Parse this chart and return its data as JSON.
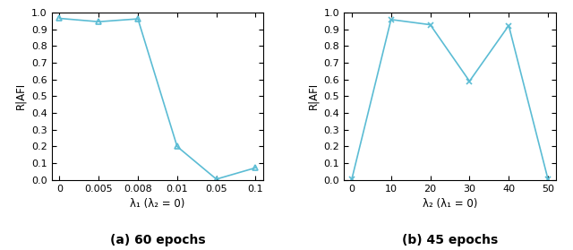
{
  "plot1": {
    "x_positions": [
      0,
      1,
      2,
      3,
      4,
      5
    ],
    "y": [
      0.965,
      0.945,
      0.962,
      0.2,
      0.005,
      0.073
    ],
    "xlabel": "λ₁ (λ₂ = 0)",
    "ylabel": "R|AFI",
    "title": "(a) 60 epochs",
    "xtick_labels": [
      "0",
      "0.005",
      "0.008",
      "0.01",
      "0.05",
      "0.1"
    ],
    "ylim": [
      0,
      1.0
    ],
    "yticks": [
      0,
      0.1,
      0.2,
      0.3,
      0.4,
      0.5,
      0.6,
      0.7,
      0.8,
      0.9,
      1.0
    ],
    "marker": "^",
    "color": "#5bbcd4",
    "linewidth": 1.2,
    "markersize": 5
  },
  "plot2": {
    "x_positions": [
      0,
      10,
      20,
      30,
      40,
      50
    ],
    "y": [
      0.005,
      0.958,
      0.927,
      0.59,
      0.922,
      0.005
    ],
    "xlabel": "λ₂ (λ₁ = 0)",
    "ylabel": "R|AFI",
    "title": "(b) 45 epochs",
    "xtick_labels": [
      "0",
      "10",
      "20",
      "30",
      "40",
      "50"
    ],
    "ylim": [
      0,
      1.0
    ],
    "yticks": [
      0,
      0.1,
      0.2,
      0.3,
      0.4,
      0.5,
      0.6,
      0.7,
      0.8,
      0.9,
      1.0
    ],
    "marker": "x",
    "color": "#5bbcd4",
    "linewidth": 1.2,
    "markersize": 5
  },
  "title_fontsize": 10,
  "label_fontsize": 8.5,
  "tick_fontsize": 8,
  "figsize": [
    6.4,
    2.79
  ],
  "dpi": 100
}
